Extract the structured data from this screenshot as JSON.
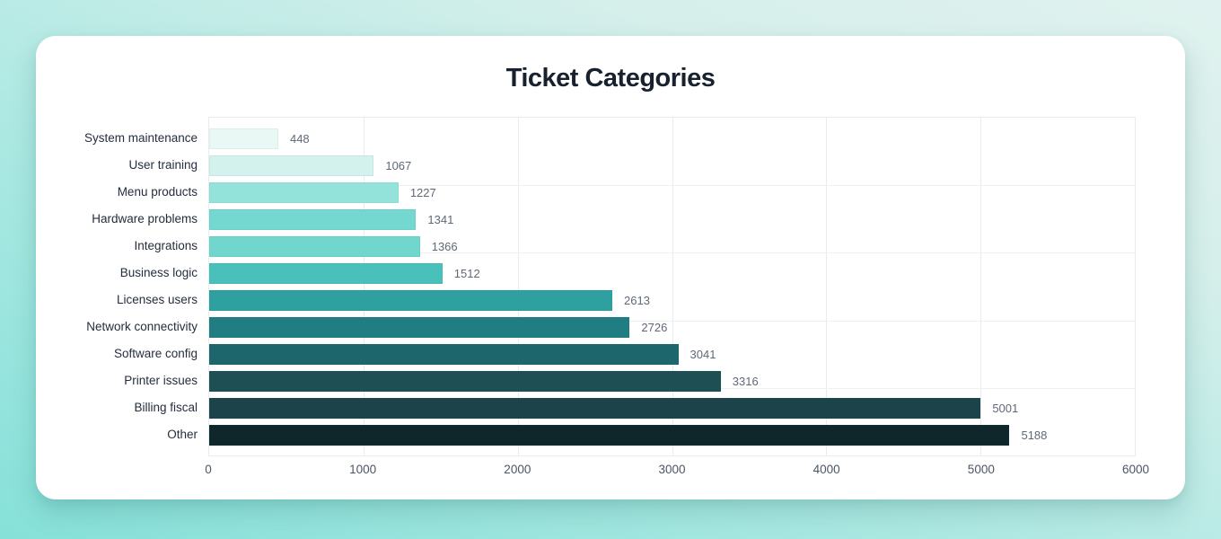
{
  "page": {
    "background_gradient": [
      "#86e1d9",
      "#a9e8e2",
      "#d6efeb",
      "#e0f2ef"
    ],
    "card_color": "#ffffff"
  },
  "chart_data": {
    "type": "bar",
    "orientation": "horizontal",
    "title": "Ticket Categories",
    "categories": [
      "System maintenance",
      "User training",
      "Menu products",
      "Hardware problems",
      "Integrations",
      "Business logic",
      "Licenses users",
      "Network connectivity",
      "Software config",
      "Printer issues",
      "Billing fiscal",
      "Other"
    ],
    "values": [
      448,
      1067,
      1227,
      1341,
      1366,
      1512,
      2613,
      2726,
      3041,
      3316,
      5001,
      5188
    ],
    "bar_colors": [
      "#eaf8f5",
      "#d3f2ed",
      "#94e3db",
      "#74d8d0",
      "#70d6ce",
      "#49c0b9",
      "#2da09f",
      "#207d82",
      "#1d666c",
      "#1d4f55",
      "#1c434a",
      "#0f262b"
    ],
    "xlabel": "",
    "ylabel": "",
    "xlim": [
      0,
      6000
    ],
    "x_ticks": [
      "0",
      "1000",
      "2000",
      "3000",
      "4000",
      "5000",
      "6000"
    ],
    "grid": "on",
    "h_grid_divisions": 5,
    "value_labels": "outside-end",
    "legend": "none",
    "text_colors": {
      "title": "#18222f",
      "category": "#242e3d",
      "value": "#5e6977",
      "tick": "#4b5563"
    },
    "grid_color": "#e9ebee"
  }
}
